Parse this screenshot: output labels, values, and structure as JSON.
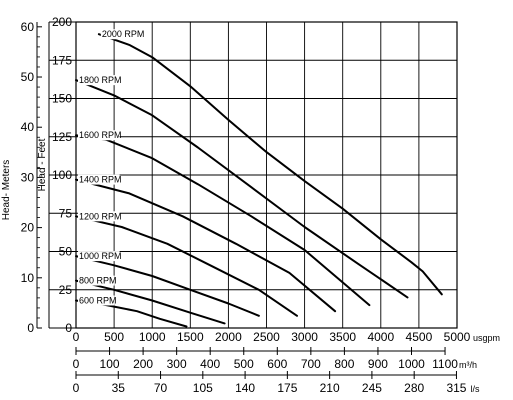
{
  "chart_data": {
    "type": "line",
    "title": "",
    "x_axes": [
      {
        "unit": "usgpm",
        "min": 0,
        "max": 5000,
        "ticks": [
          0,
          500,
          1000,
          1500,
          2000,
          2500,
          3000,
          3500,
          4000,
          4500,
          5000
        ]
      },
      {
        "unit": "m³/h",
        "min": 0,
        "max": 1100,
        "ticks": [
          0,
          100,
          200,
          300,
          400,
          500,
          600,
          700,
          800,
          900,
          1000,
          1100
        ]
      },
      {
        "unit": "l/s",
        "min": 0,
        "max": 315,
        "ticks": [
          0,
          35,
          70,
          105,
          140,
          175,
          210,
          245,
          280,
          315
        ]
      }
    ],
    "y_axes": [
      {
        "label": "Head- Meters",
        "min": 0,
        "max": 61,
        "ticks": [
          0,
          10,
          20,
          30,
          40,
          50,
          60
        ]
      },
      {
        "label": "Head - Feet",
        "min": 0,
        "max": 200,
        "ticks": [
          0,
          25,
          50,
          75,
          100,
          125,
          150,
          175,
          200
        ]
      }
    ],
    "grid": true,
    "series": [
      {
        "name": "600 RPM",
        "points": [
          [
            0,
            18
          ],
          [
            400,
            15
          ],
          [
            800,
            11
          ],
          [
            1100,
            6
          ],
          [
            1450,
            1
          ]
        ]
      },
      {
        "name": "800 RPM",
        "points": [
          [
            0,
            31
          ],
          [
            500,
            25
          ],
          [
            1000,
            18
          ],
          [
            1500,
            10
          ],
          [
            1950,
            3
          ]
        ]
      },
      {
        "name": "1000 RPM",
        "points": [
          [
            0,
            47
          ],
          [
            500,
            41
          ],
          [
            1000,
            34
          ],
          [
            1500,
            25
          ],
          [
            2000,
            16
          ],
          [
            2400,
            8
          ]
        ]
      },
      {
        "name": "1200 RPM",
        "points": [
          [
            0,
            73
          ],
          [
            600,
            66
          ],
          [
            1200,
            55
          ],
          [
            1800,
            40
          ],
          [
            2400,
            25
          ],
          [
            2900,
            8
          ]
        ]
      },
      {
        "name": "1400 RPM",
        "points": [
          [
            0,
            97
          ],
          [
            700,
            88
          ],
          [
            1400,
            73
          ],
          [
            2100,
            55
          ],
          [
            2800,
            36
          ],
          [
            3400,
            11
          ]
        ]
      },
      {
        "name": "1600 RPM",
        "points": [
          [
            0,
            126
          ],
          [
            400,
            123
          ],
          [
            1000,
            111
          ],
          [
            1600,
            94
          ],
          [
            2300,
            73
          ],
          [
            3000,
            51
          ],
          [
            3850,
            15
          ]
        ]
      },
      {
        "name": "1800 RPM",
        "points": [
          [
            0,
            162
          ],
          [
            500,
            152
          ],
          [
            1000,
            139
          ],
          [
            1600,
            118
          ],
          [
            2300,
            92
          ],
          [
            3000,
            66
          ],
          [
            3700,
            42
          ],
          [
            4350,
            20
          ]
        ]
      },
      {
        "name": "2000 RPM",
        "points": [
          [
            300,
            192
          ],
          [
            700,
            185
          ],
          [
            1000,
            177
          ],
          [
            1500,
            158
          ],
          [
            2000,
            136
          ],
          [
            2500,
            115
          ],
          [
            3000,
            96
          ],
          [
            3500,
            78
          ],
          [
            4000,
            58
          ],
          [
            4400,
            43
          ],
          [
            4550,
            37
          ],
          [
            4800,
            22
          ]
        ]
      }
    ]
  }
}
